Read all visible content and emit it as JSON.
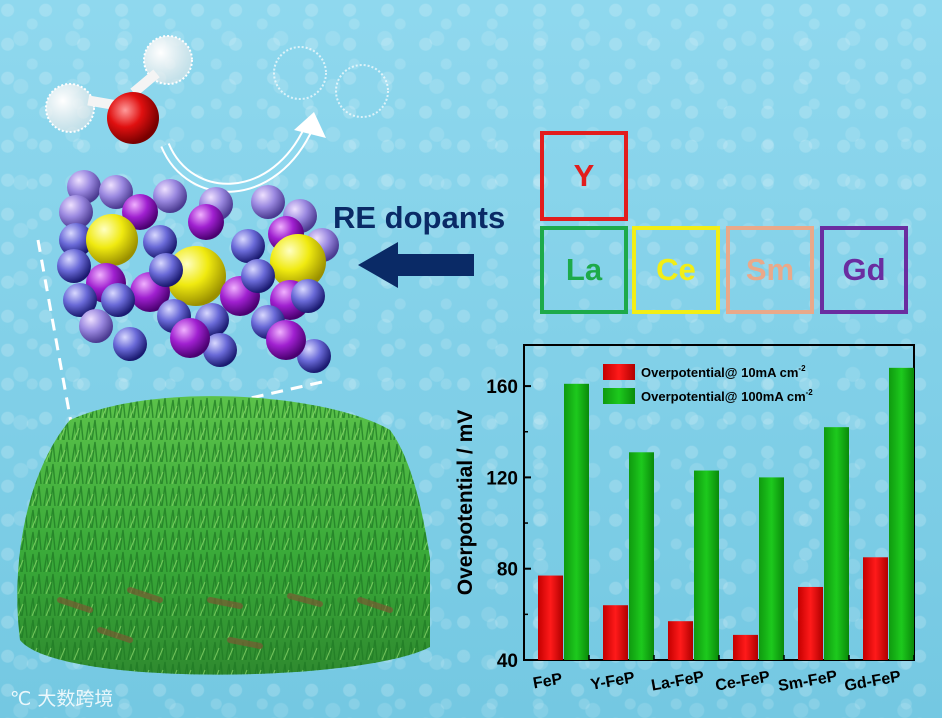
{
  "annotation": {
    "arrow_label": "RE dopants"
  },
  "elements": [
    {
      "symbol": "Y",
      "color": "#e21d1d"
    },
    {
      "symbol": "La",
      "color": "#1daa4a"
    },
    {
      "symbol": "Ce",
      "color": "#f2ee16"
    },
    {
      "symbol": "Sm",
      "color": "#e9a98a"
    },
    {
      "symbol": "Gd",
      "color": "#6a2da0"
    }
  ],
  "watermark": "大数跨境",
  "colors": {
    "series1": "#ff1a1a",
    "series2": "#1dc91d",
    "arrow": "#0a2a66"
  },
  "chart_data": {
    "type": "bar",
    "categories": [
      "FeP",
      "Y-FeP",
      "La-FeP",
      "Ce-FeP",
      "Sm-FeP",
      "Gd-FeP"
    ],
    "series": [
      {
        "name": "Overpotential@ 10mA cm",
        "name_sup": "-2",
        "values": [
          77,
          64,
          57,
          51,
          72,
          85
        ]
      },
      {
        "name": "Overpotential@ 100mA cm",
        "name_sup": "-2",
        "values": [
          161,
          131,
          123,
          120,
          142,
          168
        ]
      }
    ],
    "ylabel": "Overpotential / mV",
    "xlabel": "",
    "ylim": [
      40,
      178
    ],
    "yticks": [
      40,
      80,
      120,
      160
    ],
    "legend": "top-left"
  }
}
